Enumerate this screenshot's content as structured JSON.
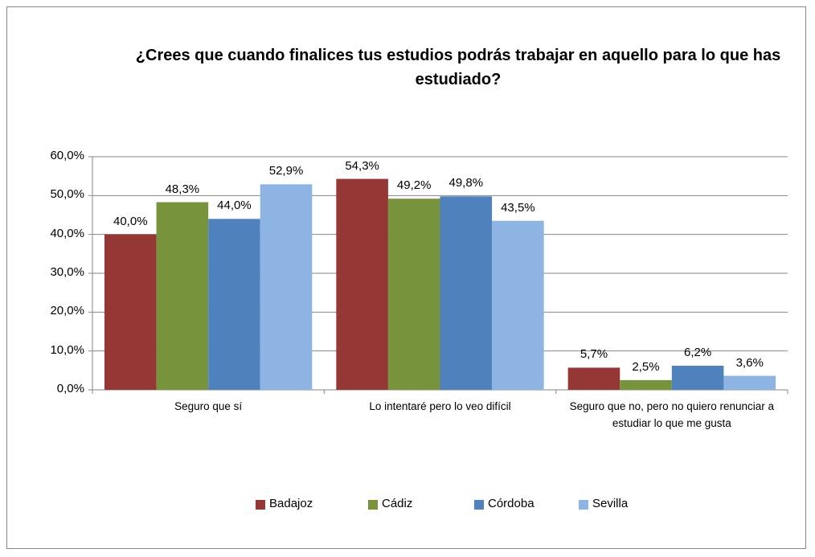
{
  "chart_data": {
    "type": "bar",
    "title": "¿Crees que cuando finalices tus estudios podrás trabajar en aquello para lo que has estudiado?",
    "categories": [
      "Seguro que sí",
      "Lo intentaré pero lo veo difícil",
      "Seguro que no, pero no quiero renunciar a estudiar lo que me gusta"
    ],
    "series": [
      {
        "name": "Badajoz",
        "color": "#953735",
        "values": [
          40.0,
          54.3,
          5.7
        ],
        "value_labels": [
          "40,0%",
          "54,3%",
          "5,7%"
        ]
      },
      {
        "name": "Cádiz",
        "color": "#77933c",
        "values": [
          48.3,
          49.2,
          2.5
        ],
        "value_labels": [
          "48,3%",
          "49,2%",
          "2,5%"
        ]
      },
      {
        "name": "Córdoba",
        "color": "#4f81bd",
        "values": [
          44.0,
          49.8,
          6.2
        ],
        "value_labels": [
          "44,0%",
          "49,8%",
          "6,2%"
        ]
      },
      {
        "name": "Sevilla",
        "color": "#8eb4e3",
        "values": [
          52.9,
          43.5,
          3.6
        ],
        "value_labels": [
          "52,9%",
          "43,5%",
          "3,6%"
        ]
      }
    ],
    "ylim": [
      0,
      60
    ],
    "yticks": [
      {
        "value": 0,
        "label": "0,0%"
      },
      {
        "value": 10,
        "label": "10,0%"
      },
      {
        "value": 20,
        "label": "20,0%"
      },
      {
        "value": 30,
        "label": "30,0%"
      },
      {
        "value": 40,
        "label": "40,0%"
      },
      {
        "value": 50,
        "label": "50,0%"
      },
      {
        "value": 60,
        "label": "60,0%"
      }
    ],
    "grid": true,
    "legend": "bottom"
  }
}
